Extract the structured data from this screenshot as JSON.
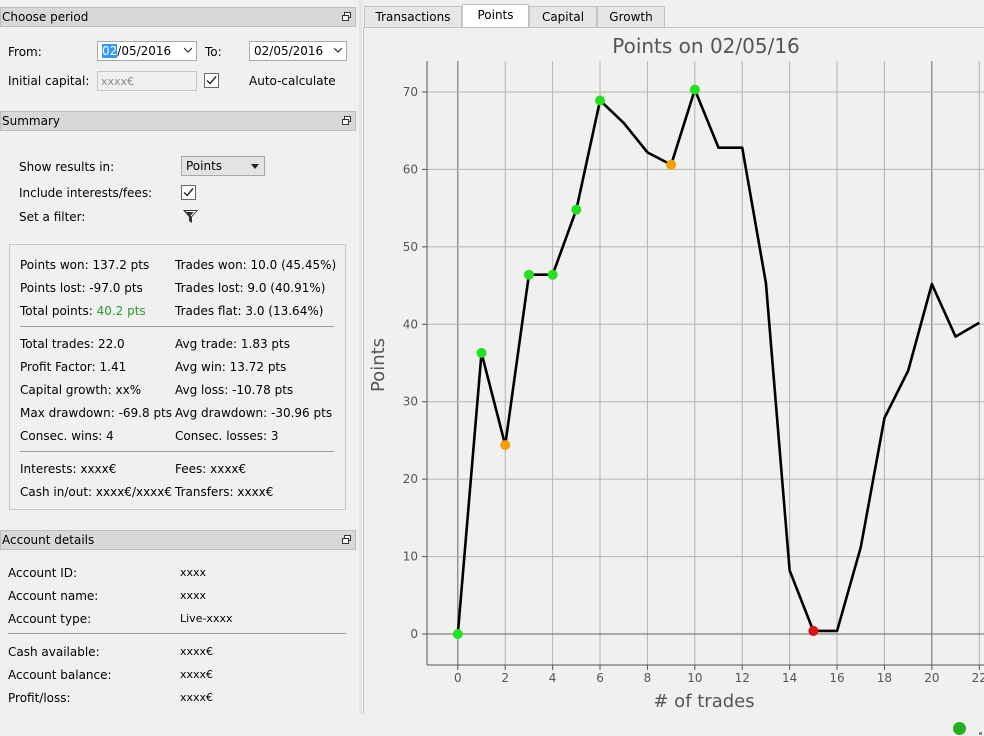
{
  "period": {
    "title": "Choose period",
    "from_label": "From:",
    "from_value": "02/05/2016",
    "from_value_selected": "02",
    "from_value_rest": "/05/2016",
    "to_label": "To:",
    "to_value": "02/05/2016",
    "initial_capital_label": "Initial capital:",
    "initial_capital_value": "xxxx€",
    "auto_calculate_label": "Auto-calculate",
    "auto_calculate_checked": true
  },
  "summary": {
    "title": "Summary",
    "show_results_label": "Show results in:",
    "show_results_value": "Points",
    "include_fees_label": "Include interests/fees:",
    "include_fees_checked": true,
    "filter_label": "Set a filter:",
    "points_won": "Points won: 137.2 pts",
    "trades_won": "Trades won: 10.0 (45.45%)",
    "points_lost": "Points lost: -97.0 pts",
    "trades_lost": "Trades lost: 9.0 (40.91%)",
    "total_points_label": "Total points: ",
    "total_points_value": "40.2 pts",
    "total_points_color": "#2ca02c",
    "trades_flat": "Trades flat: 3.0 (13.64%)",
    "total_trades": "Total trades: 22.0",
    "avg_trade": "Avg trade: 1.83 pts",
    "profit_factor": "Profit Factor: 1.41",
    "avg_win": "Avg win: 13.72 pts",
    "capital_growth": "Capital growth: xx%",
    "avg_loss": "Avg loss: -10.78 pts",
    "max_drawdown": "Max drawdown: -69.8 pts",
    "avg_drawdown": "Avg drawdown: -30.96 pts",
    "consec_wins": "Consec. wins: 4",
    "consec_losses": "Consec. losses: 3",
    "interests": "Interests: xxxx€",
    "fees": "Fees: xxxx€",
    "cash_inout": "Cash in/out: xxxx€/xxxx€",
    "transfers": "Transfers: xxxx€"
  },
  "account": {
    "title": "Account details",
    "id_label": "Account ID:",
    "id_value": "xxxx",
    "name_label": "Account name:",
    "name_value": "xxxx",
    "type_label": "Account type:",
    "type_value": "Live-xxxx",
    "cash_label": "Cash available:",
    "cash_value": "xxxx€",
    "balance_label": "Account balance:",
    "balance_value": "xxxx€",
    "pl_label": "Profit/loss:",
    "pl_value": "xxxx€"
  },
  "tabs": [
    {
      "label": "Transactions",
      "active": false
    },
    {
      "label": "Points",
      "active": true
    },
    {
      "label": "Capital",
      "active": false
    },
    {
      "label": "Growth",
      "active": false
    }
  ],
  "status": {
    "indicator_color": "#22b022"
  },
  "chart_data": {
    "type": "line",
    "title": "Points on 02/05/16",
    "xlabel": "# of trades",
    "ylabel": "Points",
    "xlim": [
      -1.3,
      22.2
    ],
    "ylim": [
      -4,
      74
    ],
    "xticks": [
      0,
      2,
      4,
      6,
      8,
      10,
      12,
      14,
      16,
      18,
      20,
      22
    ],
    "yticks": [
      0,
      10,
      20,
      30,
      40,
      50,
      60,
      70
    ],
    "grid": true,
    "x": [
      0,
      1,
      2,
      3,
      4,
      5,
      6,
      7,
      8,
      9,
      10,
      11,
      12,
      13,
      14,
      15,
      16,
      17,
      18,
      19,
      20,
      21,
      22
    ],
    "y": [
      0,
      36.3,
      24.4,
      46.4,
      46.4,
      54.8,
      68.9,
      66.0,
      62.2,
      60.6,
      70.3,
      62.8,
      62.8,
      45.3,
      8.2,
      0.4,
      0.4,
      11.2,
      27.9,
      34.0,
      45.2,
      38.4,
      40.2
    ],
    "markers": [
      {
        "x": 0,
        "y": 0,
        "color": "#22e022"
      },
      {
        "x": 1,
        "y": 36.3,
        "color": "#22e022"
      },
      {
        "x": 2,
        "y": 24.4,
        "color": "#f5a000"
      },
      {
        "x": 3,
        "y": 46.4,
        "color": "#22e022"
      },
      {
        "x": 4,
        "y": 46.4,
        "color": "#22e022"
      },
      {
        "x": 5,
        "y": 54.8,
        "color": "#22e022"
      },
      {
        "x": 6,
        "y": 68.9,
        "color": "#22e022"
      },
      {
        "x": 9,
        "y": 60.6,
        "color": "#f5a000"
      },
      {
        "x": 10,
        "y": 70.3,
        "color": "#22e022"
      },
      {
        "x": 15,
        "y": 0.4,
        "color": "#e01010"
      }
    ]
  }
}
